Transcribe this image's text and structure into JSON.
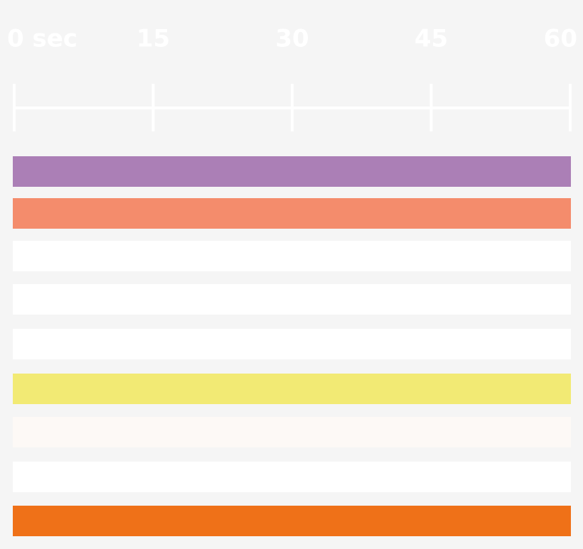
{
  "chart_data": {
    "type": "bar",
    "orientation": "horizontal",
    "categories": [
      null,
      null,
      null,
      null,
      null,
      null,
      null,
      null,
      null
    ],
    "values": [
      60,
      60,
      60,
      60,
      60,
      60,
      60,
      60,
      60
    ],
    "colors": [
      "#ab7fb6",
      "#f48c6c",
      "#ffffff",
      "#ffffff",
      "#ffffff",
      "#f2ea74",
      "#fdf9f6",
      "#ffffff",
      "#ef7118"
    ],
    "xlim": [
      0,
      60
    ],
    "xticks": [
      {
        "value": 0,
        "label": "0 sec"
      },
      15,
      30,
      45,
      60
    ]
  }
}
